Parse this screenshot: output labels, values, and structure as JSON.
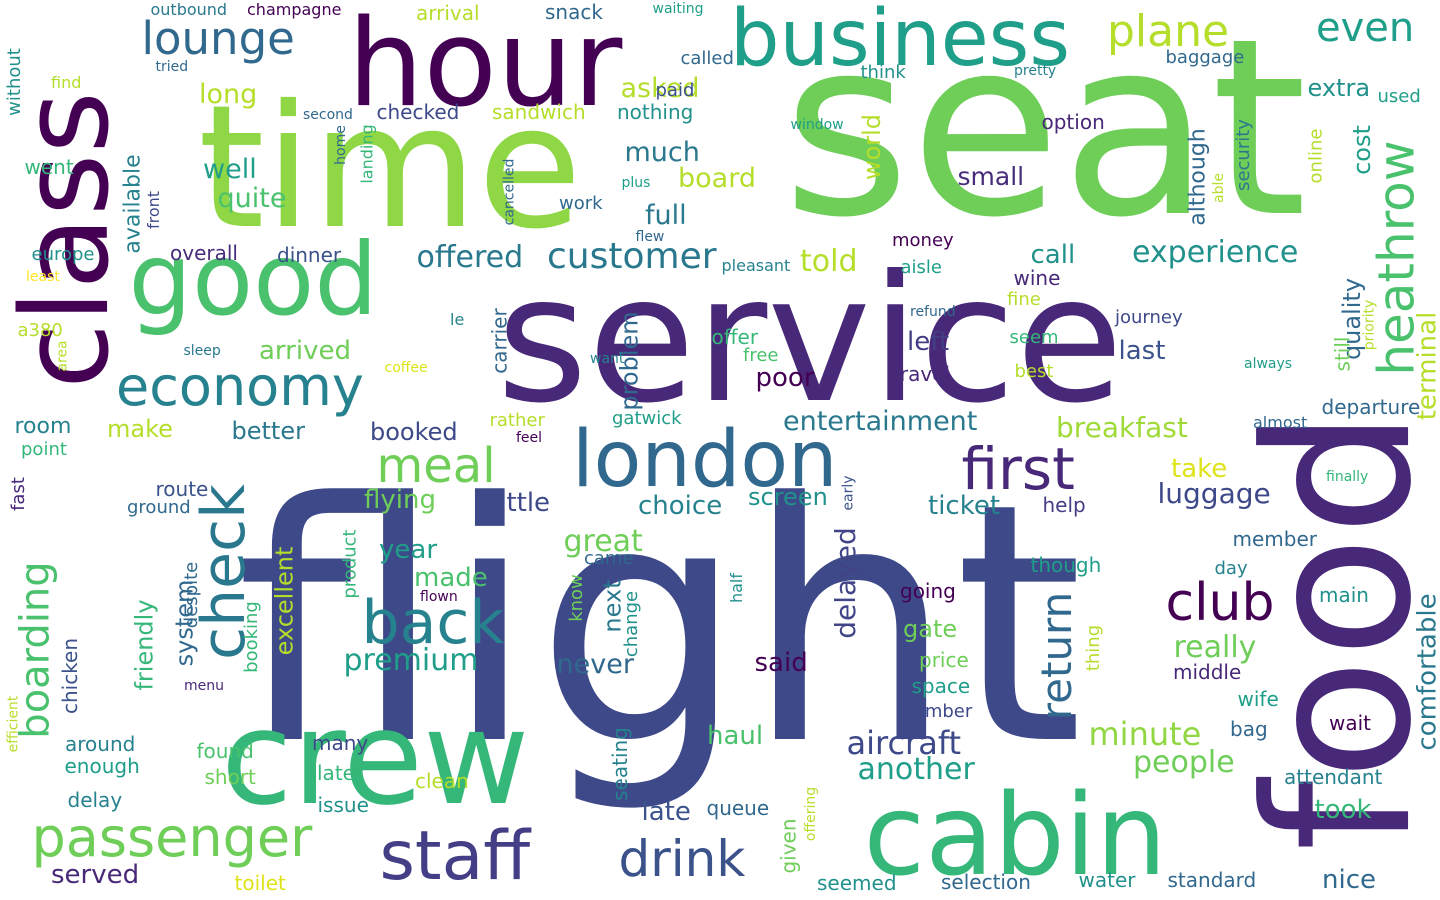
{
  "background": "#ffffff",
  "palette": [
    "#440154",
    "#482878",
    "#3e4989",
    "#31688e",
    "#26828e",
    "#1f9e89",
    "#35b779",
    "#6ece58",
    "#b5de2b",
    "#fde725"
  ],
  "words": [
    {
      "text": "flight",
      "color": "#3e4989"
    },
    {
      "text": "seat",
      "color": "#6ece58"
    },
    {
      "text": "service",
      "color": "#482878"
    },
    {
      "text": "time",
      "color": "#8fd744"
    },
    {
      "text": "food",
      "color": "#482878"
    },
    {
      "text": "crew",
      "color": "#35b779"
    },
    {
      "text": "cabin",
      "color": "#35b779"
    },
    {
      "text": "class",
      "color": "#440154"
    },
    {
      "text": "hour",
      "color": "#440154"
    },
    {
      "text": "business",
      "color": "#1f9e89"
    },
    {
      "text": "good",
      "color": "#4ac16d"
    },
    {
      "text": "london",
      "color": "#31688e"
    },
    {
      "text": "staff",
      "color": "#433e85"
    },
    {
      "text": "passenger",
      "color": "#6ece58"
    },
    {
      "text": "economy",
      "color": "#26828e"
    },
    {
      "text": "check",
      "color": "#2a788e"
    },
    {
      "text": "back",
      "color": "#26828e"
    },
    {
      "text": "first",
      "color": "#482878"
    },
    {
      "text": "heathrow",
      "color": "#4ac16d"
    },
    {
      "text": "drink",
      "color": "#3b528b"
    },
    {
      "text": "meal",
      "color": "#6ece58"
    },
    {
      "text": "lounge",
      "color": "#31688e"
    },
    {
      "text": "plane",
      "color": "#b5de2b"
    },
    {
      "text": "even",
      "color": "#1f9e89"
    },
    {
      "text": "club",
      "color": "#440154"
    },
    {
      "text": "boarding",
      "color": "#4ac16d"
    },
    {
      "text": "return",
      "color": "#31688e"
    },
    {
      "text": "customer",
      "color": "#2a788e"
    },
    {
      "text": "experience",
      "color": "#21918c"
    },
    {
      "text": "aircraft",
      "color": "#3e4989"
    },
    {
      "text": "entertainment",
      "color": "#2a788e"
    },
    {
      "text": "breakfast",
      "color": "#a0da39"
    },
    {
      "text": "premium",
      "color": "#1f9e89"
    },
    {
      "text": "minute",
      "color": "#90d743"
    },
    {
      "text": "offered",
      "color": "#2a788e"
    },
    {
      "text": "luggage",
      "color": "#3e4989"
    },
    {
      "text": "people",
      "color": "#6ece58"
    },
    {
      "text": "another",
      "color": "#1f9e89"
    },
    {
      "text": "great",
      "color": "#6ece58"
    },
    {
      "text": "delayed",
      "color": "#414487"
    },
    {
      "text": "comfortable",
      "color": "#2a788e"
    },
    {
      "text": "terminal",
      "color": "#b5de2b"
    },
    {
      "text": "choice",
      "color": "#26828e"
    },
    {
      "text": "screen",
      "color": "#21918c"
    },
    {
      "text": "little",
      "color": "#3e4989"
    },
    {
      "text": "flying",
      "color": "#6ece58"
    },
    {
      "text": "year",
      "color": "#1f9e89"
    },
    {
      "text": "made",
      "color": "#4ac16d"
    },
    {
      "text": "really",
      "color": "#6ece58"
    },
    {
      "text": "never",
      "color": "#31688e"
    },
    {
      "text": "ticket",
      "color": "#26828e"
    },
    {
      "text": "told",
      "color": "#b5de2b"
    },
    {
      "text": "full",
      "color": "#2a788e"
    },
    {
      "text": "much",
      "color": "#2a788e"
    },
    {
      "text": "board",
      "color": "#b5de2b"
    },
    {
      "text": "asked",
      "color": "#b5de2b"
    },
    {
      "text": "long",
      "color": "#b5de2b"
    },
    {
      "text": "well",
      "color": "#1f9e89"
    },
    {
      "text": "quite",
      "color": "#4ac16d"
    },
    {
      "text": "available",
      "color": "#26828e"
    },
    {
      "text": "cost",
      "color": "#1f9e89"
    },
    {
      "text": "quality",
      "color": "#31688e"
    },
    {
      "text": "still",
      "color": "#6ece58"
    },
    {
      "text": "although",
      "color": "#31688e"
    },
    {
      "text": "extra",
      "color": "#21918c"
    },
    {
      "text": "world",
      "color": "#b5de2b"
    },
    {
      "text": "small",
      "color": "#472c7a"
    },
    {
      "text": "left",
      "color": "#433e85"
    },
    {
      "text": "poor",
      "color": "#440154"
    },
    {
      "text": "last",
      "color": "#3b528b"
    },
    {
      "text": "problem",
      "color": "#31688e"
    },
    {
      "text": "arrived",
      "color": "#6ece58"
    },
    {
      "text": "better",
      "color": "#2a788e"
    },
    {
      "text": "booked",
      "color": "#3e4989"
    },
    {
      "text": "make",
      "color": "#b5de2b"
    },
    {
      "text": "room",
      "color": "#26828e"
    },
    {
      "text": "take",
      "color": "#dde318"
    },
    {
      "text": "excellent",
      "color": "#b5de2b"
    },
    {
      "text": "friendly",
      "color": "#35b779"
    },
    {
      "text": "system",
      "color": "#31688e"
    },
    {
      "text": "gate",
      "color": "#6ece58"
    },
    {
      "text": "said",
      "color": "#440154"
    },
    {
      "text": "haul",
      "color": "#4ac16d"
    },
    {
      "text": "late",
      "color": "#3b528b"
    },
    {
      "text": "took",
      "color": "#35b779"
    },
    {
      "text": "nice",
      "color": "#31688e"
    },
    {
      "text": "served",
      "color": "#482878"
    },
    {
      "text": "call",
      "color": "#21918c"
    },
    {
      "text": "next",
      "color": "#2a788e"
    },
    {
      "text": "departure",
      "color": "#31688e"
    },
    {
      "text": "security",
      "color": "#2a788e"
    },
    {
      "text": "baggage",
      "color": "#31688e"
    },
    {
      "text": "option",
      "color": "#482878"
    },
    {
      "text": "think",
      "color": "#21918c"
    },
    {
      "text": "nothing",
      "color": "#21918c"
    },
    {
      "text": "checked",
      "color": "#3e4989"
    },
    {
      "text": "sandwich",
      "color": "#b5de2b"
    },
    {
      "text": "paid",
      "color": "#3b528b"
    },
    {
      "text": "called",
      "color": "#31688e"
    },
    {
      "text": "snack",
      "color": "#31688e"
    },
    {
      "text": "arrival",
      "color": "#b5de2b"
    },
    {
      "text": "outbound",
      "color": "#2a788e"
    },
    {
      "text": "champagne",
      "color": "#440154"
    },
    {
      "text": "waiting",
      "color": "#1f9e89"
    },
    {
      "text": "tried",
      "color": "#31688e"
    },
    {
      "text": "pretty",
      "color": "#26828e"
    },
    {
      "text": "used",
      "color": "#1f9e89"
    },
    {
      "text": "online",
      "color": "#b5de2b"
    },
    {
      "text": "window",
      "color": "#1f9e89"
    },
    {
      "text": "work",
      "color": "#31688e"
    },
    {
      "text": "front",
      "color": "#3e4989"
    },
    {
      "text": "overall",
      "color": "#472c7a"
    },
    {
      "text": "dinner",
      "color": "#3b528b"
    },
    {
      "text": "money",
      "color": "#440154"
    },
    {
      "text": "aisle",
      "color": "#1f9e89"
    },
    {
      "text": "wine",
      "color": "#482878"
    },
    {
      "text": "fine",
      "color": "#b5de2b"
    },
    {
      "text": "seem",
      "color": "#35b779"
    },
    {
      "text": "best",
      "color": "#b5de2b"
    },
    {
      "text": "journey",
      "color": "#3e4989"
    },
    {
      "text": "refund",
      "color": "#31688e"
    },
    {
      "text": "europe",
      "color": "#21918c"
    },
    {
      "text": "least",
      "color": "#fde725"
    },
    {
      "text": "a380",
      "color": "#b5de2b"
    },
    {
      "text": "le",
      "color": "#26828e"
    },
    {
      "text": "sleep",
      "color": "#2a788e"
    },
    {
      "text": "carrier",
      "color": "#31688e"
    },
    {
      "text": "offer",
      "color": "#35b779"
    },
    {
      "text": "free",
      "color": "#4ac16d"
    },
    {
      "text": "want",
      "color": "#26828e"
    },
    {
      "text": "coffee",
      "color": "#dde318"
    },
    {
      "text": "travel",
      "color": "#482878"
    },
    {
      "text": "always",
      "color": "#1f9e89"
    },
    {
      "text": "priority",
      "color": "#b5de2b"
    },
    {
      "text": "area",
      "color": "#b5de2b"
    },
    {
      "text": "point",
      "color": "#35b779"
    },
    {
      "text": "rather",
      "color": "#b5de2b"
    },
    {
      "text": "feel",
      "color": "#440154"
    },
    {
      "text": "gatwick",
      "color": "#1f9e89"
    },
    {
      "text": "almost",
      "color": "#31688e"
    },
    {
      "text": "finally",
      "color": "#35b779"
    },
    {
      "text": "fast",
      "color": "#482878"
    },
    {
      "text": "route",
      "color": "#3b528b"
    },
    {
      "text": "ground",
      "color": "#31688e"
    },
    {
      "text": "early",
      "color": "#3b528b"
    },
    {
      "text": "help",
      "color": "#433e85"
    },
    {
      "text": "member",
      "color": "#31688e"
    },
    {
      "text": "though",
      "color": "#1f9e89"
    },
    {
      "text": "day",
      "color": "#26828e"
    },
    {
      "text": "came",
      "color": "#31688e"
    },
    {
      "text": "despite",
      "color": "#31688e"
    },
    {
      "text": "product",
      "color": "#35b779"
    },
    {
      "text": "know",
      "color": "#6ece58"
    },
    {
      "text": "change",
      "color": "#21918c"
    },
    {
      "text": "going",
      "color": "#440154"
    },
    {
      "text": "half",
      "color": "#21918c"
    },
    {
      "text": "main",
      "color": "#21918c"
    },
    {
      "text": "flown",
      "color": "#440154"
    },
    {
      "text": "booking",
      "color": "#35b779"
    },
    {
      "text": "chicken",
      "color": "#3b528b"
    },
    {
      "text": "menu",
      "color": "#482878"
    },
    {
      "text": "efficient",
      "color": "#b5de2b"
    },
    {
      "text": "price",
      "color": "#6ece58"
    },
    {
      "text": "space",
      "color": "#1f9e89"
    },
    {
      "text": "number",
      "color": "#3e4989"
    },
    {
      "text": "middle",
      "color": "#482878"
    },
    {
      "text": "wife",
      "color": "#1f9e89"
    },
    {
      "text": "thing",
      "color": "#b5de2b"
    },
    {
      "text": "bag",
      "color": "#31688e"
    },
    {
      "text": "wait",
      "color": "#440154"
    },
    {
      "text": "around",
      "color": "#26828e"
    },
    {
      "text": "found",
      "color": "#4ac16d"
    },
    {
      "text": "enough",
      "color": "#1f9e89"
    },
    {
      "text": "many",
      "color": "#3e4989"
    },
    {
      "text": "short",
      "color": "#6ece58"
    },
    {
      "text": "later",
      "color": "#35b779"
    },
    {
      "text": "delay",
      "color": "#26828e"
    },
    {
      "text": "issue",
      "color": "#21918c"
    },
    {
      "text": "clean",
      "color": "#b5de2b"
    },
    {
      "text": "queue",
      "color": "#31688e"
    },
    {
      "text": "seating",
      "color": "#26828e"
    },
    {
      "text": "attendant",
      "color": "#26828e"
    },
    {
      "text": "given",
      "color": "#6ece58"
    },
    {
      "text": "offering",
      "color": "#b5de2b"
    },
    {
      "text": "seemed",
      "color": "#21918c"
    },
    {
      "text": "selection",
      "color": "#31688e"
    },
    {
      "text": "water",
      "color": "#21918c"
    },
    {
      "text": "standard",
      "color": "#31688e"
    },
    {
      "text": "toilet",
      "color": "#dde318"
    },
    {
      "text": "without",
      "color": "#21918c"
    },
    {
      "text": "find",
      "color": "#b5de2b"
    },
    {
      "text": "went",
      "color": "#35b779"
    },
    {
      "text": "second",
      "color": "#31688e"
    },
    {
      "text": "home",
      "color": "#31688e"
    },
    {
      "text": "landing",
      "color": "#35b779"
    },
    {
      "text": "cancelled",
      "color": "#31688e"
    },
    {
      "text": "plus",
      "color": "#1f9e89"
    },
    {
      "text": "flew",
      "color": "#31688e"
    },
    {
      "text": "pleasant",
      "color": "#26828e"
    },
    {
      "text": "able",
      "color": "#b5de2b"
    }
  ]
}
